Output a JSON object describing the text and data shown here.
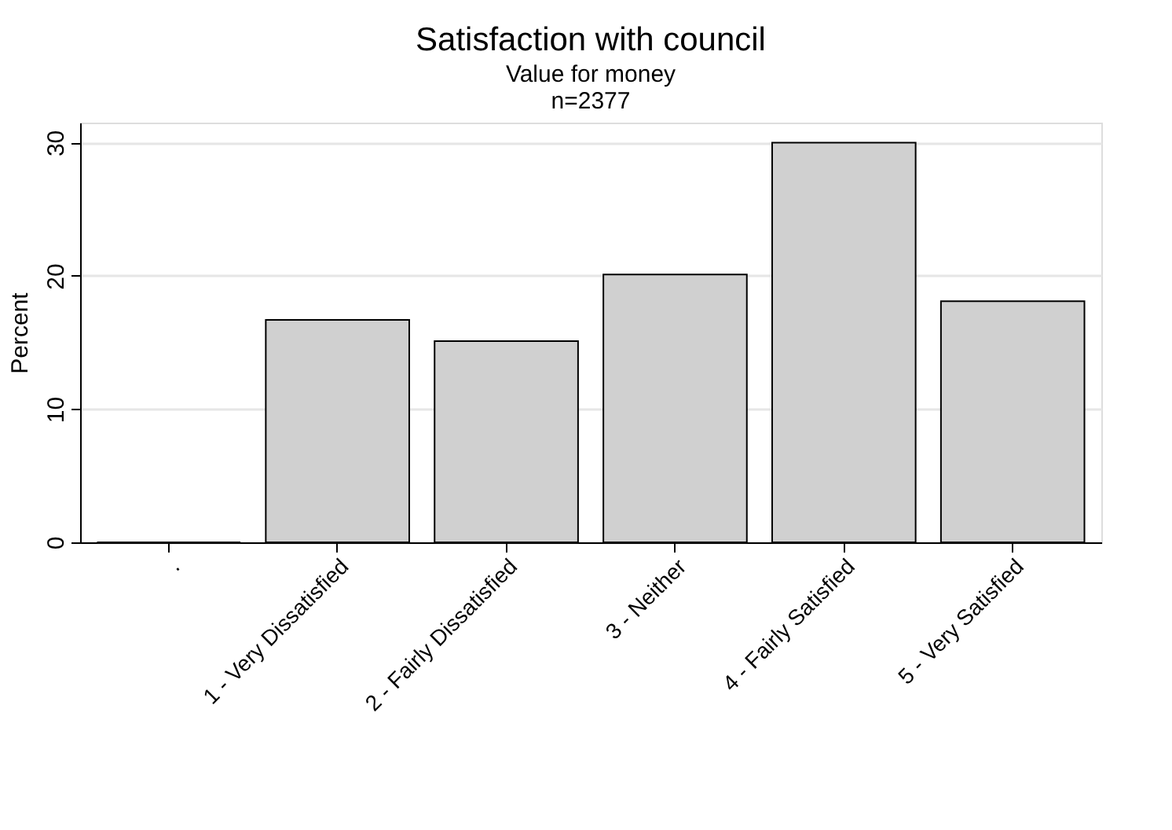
{
  "chart_data": {
    "type": "bar",
    "title": "Satisfaction with council",
    "subtitle": [
      "Value for money",
      "n=2377"
    ],
    "ylabel": "Percent",
    "categories": [
      ".",
      "1 - Very Dissatisfied",
      "2 - Fairly Dissatisfied",
      "3 - Neither",
      "4 - Fairly Satisfied",
      "5 - Very Satisfied"
    ],
    "values": [
      0,
      16.7,
      15.1,
      20.1,
      30.0,
      18.1
    ],
    "color": "#d0d0d0",
    "ylim": [
      0,
      31.5
    ],
    "yticks": [
      0,
      10,
      20,
      30
    ],
    "grid": "y"
  }
}
